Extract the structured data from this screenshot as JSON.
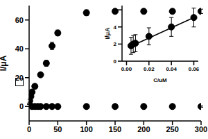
{
  "chart_data": [
    {
      "type": "scatter",
      "ylabel": "I/μA",
      "xlim": [
        0,
        300
      ],
      "xticks": [
        0,
        50,
        100,
        150,
        200,
        250,
        300
      ],
      "ylim": [
        -10,
        70
      ],
      "yticks": [
        0,
        20,
        40,
        60
      ],
      "grid": false,
      "series": [
        {
          "color": "#000000",
          "marker": "circle",
          "x": [
            0,
            1,
            3,
            5,
            10,
            20,
            30,
            40,
            50,
            100,
            150,
            200,
            250,
            300
          ],
          "values": [
            1.8,
            4,
            7,
            10,
            14,
            22,
            30,
            42,
            51,
            65,
            66,
            66,
            66,
            66
          ],
          "errors": [
            0.5,
            1,
            1,
            1,
            1.5,
            1.5,
            2,
            2.5,
            2,
            2,
            1.5,
            1.5,
            1.5,
            1.5
          ]
        },
        {
          "color": "#000000",
          "marker": "circle",
          "x": [
            5,
            10,
            15,
            20,
            30,
            40,
            50,
            100,
            150,
            200,
            250,
            300
          ],
          "values": [
            0,
            0,
            0,
            0,
            0,
            0,
            0,
            0,
            0,
            0,
            0,
            0
          ],
          "errors": [
            0.5,
            0.5,
            0.5,
            0.5,
            0.5,
            0.5,
            0.5,
            0.5,
            0.5,
            0.5,
            0.5,
            0.5
          ]
        }
      ]
    },
    {
      "type": "scatter",
      "xlabel": "C/μM",
      "ylabel": "I/μA",
      "xlim": [
        -0.004,
        0.064
      ],
      "xticks": [
        {
          "value": 0,
          "label": "0.00"
        },
        0.02,
        0.04,
        0.06
      ],
      "ylim": [
        0,
        6.5
      ],
      "yticks": [
        0,
        2,
        4,
        6
      ],
      "grid": false,
      "series": [
        {
          "color": "#000000",
          "marker": "circle",
          "x": [
            0.004,
            0.006,
            0.008,
            0.02,
            0.04,
            0.06
          ],
          "values": [
            1.8,
            2.0,
            2.1,
            2.9,
            4.0,
            5.1
          ],
          "errors": [
            1.0,
            1.0,
            1.0,
            1.0,
            1.1,
            1.1
          ]
        },
        {
          "type": "line",
          "color": "#000000",
          "line_style": "solid",
          "x": [
            0.004,
            0.06
          ],
          "values": [
            1.75,
            5.1
          ]
        }
      ]
    }
  ]
}
